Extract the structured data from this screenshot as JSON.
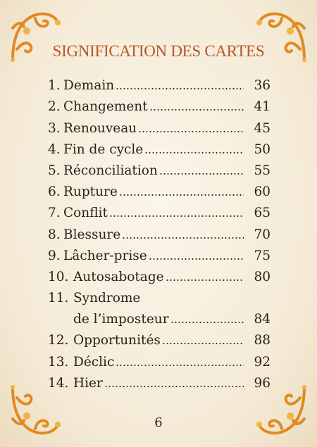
{
  "header": {
    "title": "SIGNIFICATION DES CARTES"
  },
  "entries": [
    {
      "number": "1.",
      "lines": [
        "Demain"
      ],
      "page": 36
    },
    {
      "number": "2.",
      "lines": [
        "Changement"
      ],
      "page": 41
    },
    {
      "number": "3.",
      "lines": [
        "Renouveau"
      ],
      "page": 45
    },
    {
      "number": "4.",
      "lines": [
        "Fin de cycle"
      ],
      "page": 50
    },
    {
      "number": "5.",
      "lines": [
        "Réconciliation"
      ],
      "page": 55
    },
    {
      "number": "6.",
      "lines": [
        "Rupture"
      ],
      "page": 60
    },
    {
      "number": "7.",
      "lines": [
        "Conflit"
      ],
      "page": 65
    },
    {
      "number": "8.",
      "lines": [
        "Blessure"
      ],
      "page": 70
    },
    {
      "number": "9.",
      "lines": [
        "Lâcher-prise"
      ],
      "page": 75
    },
    {
      "number": "10.",
      "lines": [
        "Autosabotage"
      ],
      "page": 80
    },
    {
      "number": "11.",
      "lines": [
        "Syndrome",
        "de l’imposteur"
      ],
      "page": 84
    },
    {
      "number": "12.",
      "lines": [
        "Opportunités"
      ],
      "page": 88
    },
    {
      "number": "13.",
      "lines": [
        "Déclic"
      ],
      "page": 92
    },
    {
      "number": "14.",
      "lines": [
        "Hier"
      ],
      "page": 96
    }
  ],
  "footer": {
    "page_number": 6
  }
}
